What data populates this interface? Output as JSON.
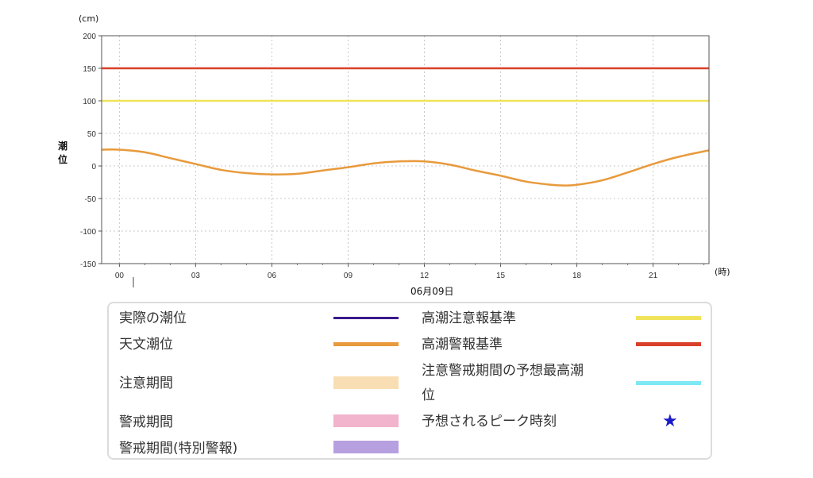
{
  "chart_data": {
    "type": "line",
    "ylabel": "潮位",
    "yunit": "(cm)",
    "xunit": "(時)",
    "date_label": "06月09日",
    "ylim": [
      -150,
      200
    ],
    "yticks": [
      200,
      150,
      100,
      50,
      0,
      -50,
      -100,
      -150
    ],
    "xlim": [
      -0.7,
      23.2
    ],
    "xticks": [
      "00",
      "03",
      "06",
      "09",
      "12",
      "15",
      "18",
      "21"
    ],
    "reference_lines": [
      {
        "name": "高潮警報基準",
        "value": 150,
        "color": "#d9402b"
      },
      {
        "name": "高潮注意報基準",
        "value": 100,
        "color": "#f0e35a"
      }
    ],
    "series": [
      {
        "name": "天文潮位",
        "color": "#e89a3c",
        "x": [
          -0.7,
          0,
          1,
          2,
          3,
          4,
          5,
          6,
          7,
          8,
          9,
          10,
          11,
          12,
          13,
          14,
          15,
          16,
          17,
          17.5,
          18,
          19,
          20,
          21,
          22,
          23.2
        ],
        "y": [
          25,
          25,
          21,
          12,
          3,
          -6,
          -11,
          -13,
          -12,
          -7,
          -2,
          4,
          7,
          7,
          2,
          -7,
          -15,
          -24,
          -29,
          -30,
          -29,
          -22,
          -10,
          3,
          14,
          24
        ]
      }
    ]
  },
  "legend": {
    "left": [
      {
        "label": "実際の潮位",
        "color": "#3a1a8c",
        "kind": "line"
      },
      {
        "label": "天文潮位",
        "color": "#e89a3c",
        "kind": "line"
      },
      {
        "label": "注意期間",
        "color": "#f9deb3",
        "kind": "block"
      },
      {
        "label": "警戒期間",
        "color": "#f2b3cc",
        "kind": "block"
      },
      {
        "label": "警戒期間(特別警報)",
        "color": "#b7a0df",
        "kind": "block"
      }
    ],
    "right": [
      {
        "label": "高潮注意報基準",
        "color": "#f0e35a",
        "kind": "line"
      },
      {
        "label": "高潮警報基準",
        "color": "#d9402b",
        "kind": "line"
      },
      {
        "label": "注意警戒期間の予想最高潮",
        "label2": "位",
        "color": "#7ee8f5",
        "kind": "line"
      },
      {
        "label": "予想されるピーク時刻",
        "color": "#1a1ac8",
        "kind": "star",
        "icon": "star-icon"
      }
    ]
  }
}
